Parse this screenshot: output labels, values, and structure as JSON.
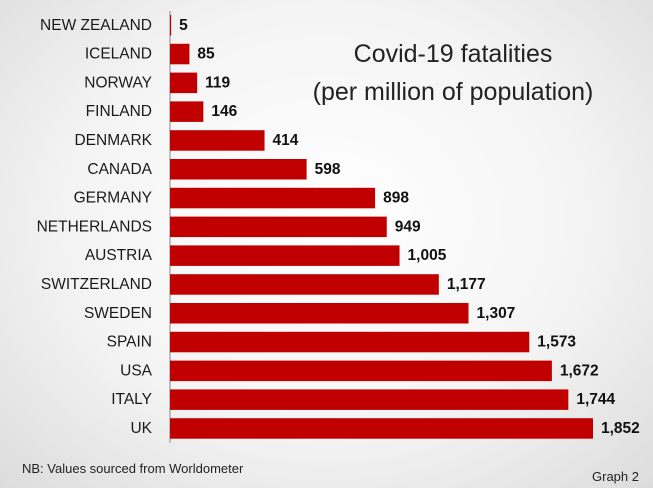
{
  "chart_data": {
    "type": "bar",
    "orientation": "horizontal",
    "title": [
      "Covid-19 fatalities",
      "(per million of population)"
    ],
    "categories": [
      "NEW ZEALAND",
      "ICELAND",
      "NORWAY",
      "FINLAND",
      "DENMARK",
      "CANADA",
      "GERMANY",
      "NETHERLANDS",
      "AUSTRIA",
      "SWITZERLAND",
      "SWEDEN",
      "SPAIN",
      "USA",
      "ITALY",
      "UK"
    ],
    "values": [
      5,
      85,
      119,
      146,
      414,
      598,
      898,
      949,
      1005,
      1177,
      1307,
      1573,
      1672,
      1744,
      1852
    ],
    "value_labels": [
      "5",
      "85",
      "119",
      "146",
      "414",
      "598",
      "898",
      "949",
      "1,005",
      "1,177",
      "1,307",
      "1,573",
      "1,672",
      "1,744",
      "1,852"
    ],
    "xlim": [
      0,
      1852
    ],
    "grid": false,
    "bar_color": "#c00000",
    "footnote": "NB: Values sourced from Worldometer",
    "graph_label": "Graph 2"
  }
}
